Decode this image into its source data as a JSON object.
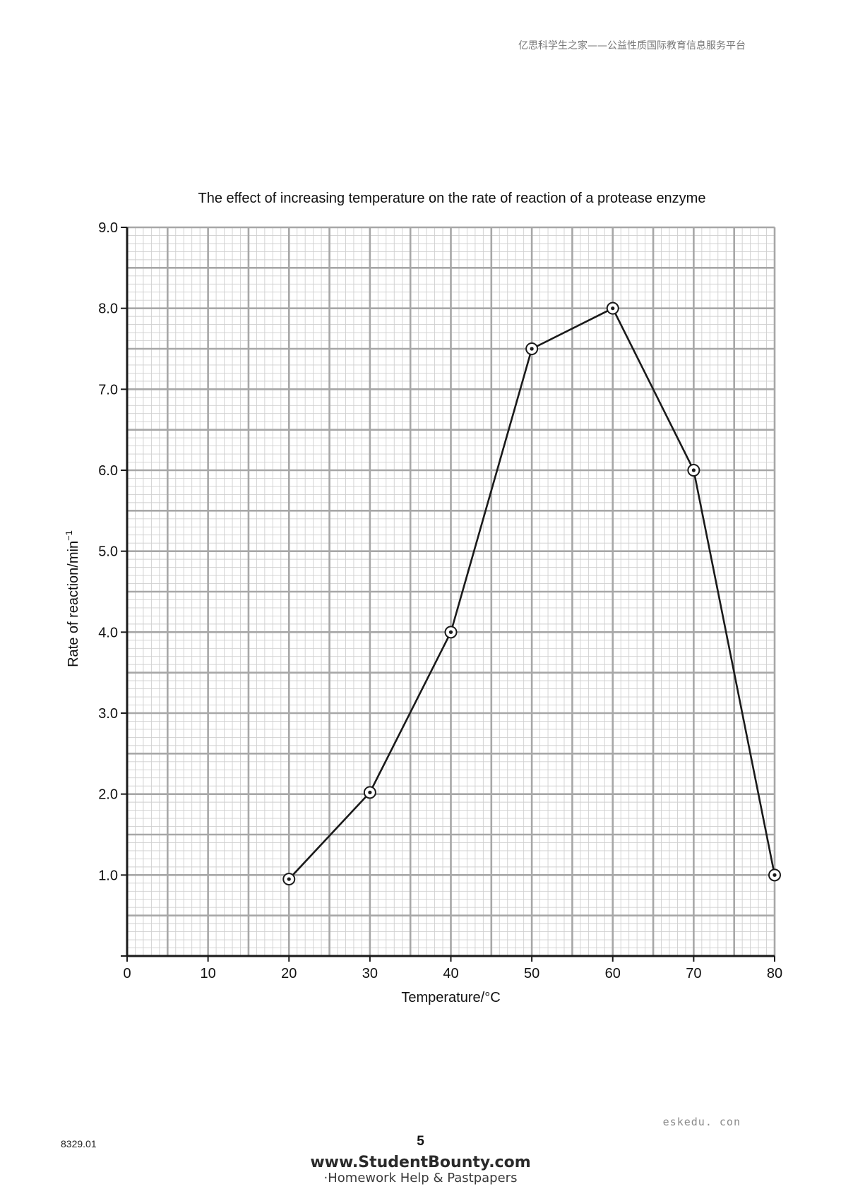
{
  "header": {
    "text": "亿思科学生之家——公益性质国际教育信息服务平台"
  },
  "chart_data": {
    "type": "line",
    "title": "The effect of increasing temperature on the rate of reaction of a protease enzyme",
    "xlabel": "Temperature/°C",
    "ylabel": "Rate of reaction/min",
    "ylabel_superscript": "−1",
    "x": [
      20,
      30,
      40,
      50,
      60,
      70,
      80
    ],
    "y": [
      0.95,
      2.02,
      4.0,
      7.5,
      8.0,
      6.0,
      1.0
    ],
    "xlim": [
      0,
      80
    ],
    "ylim": [
      0,
      9
    ],
    "x_ticks": [
      "0",
      "10",
      "20",
      "30",
      "40",
      "50",
      "60",
      "70",
      "80"
    ],
    "y_ticks": [
      "1.0",
      "2.0",
      "3.0",
      "4.0",
      "5.0",
      "6.0",
      "7.0",
      "8.0",
      "9.0"
    ],
    "grid": true,
    "marker": "circled-dot",
    "colors": {
      "line": "#1a1a1a",
      "grid_major": "#a7a7a7",
      "grid_minor": "#cfcfcf",
      "axis": "#1a1a1a"
    }
  },
  "footer": {
    "site_mark": "eskedu. con",
    "paper_code": "8329.01",
    "page_number": "5",
    "logo_url": "www.StudentBounty.com",
    "logo_tagline": "·Homework Help & Pastpapers"
  }
}
